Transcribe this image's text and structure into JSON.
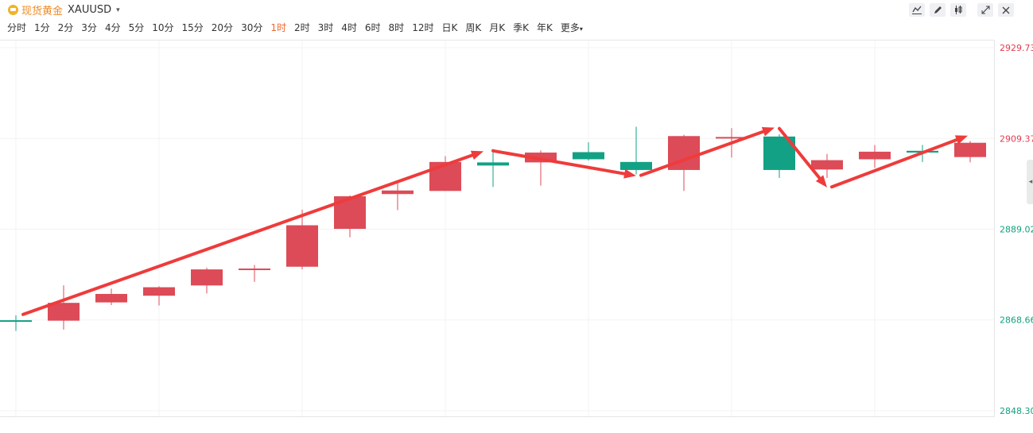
{
  "header": {
    "name": "现货黄金",
    "code": "XAUUSD",
    "caret": "▾"
  },
  "periods": [
    "分时",
    "1分",
    "2分",
    "3分",
    "4分",
    "5分",
    "10分",
    "15分",
    "20分",
    "30分",
    "1时",
    "2时",
    "3时",
    "4时",
    "6时",
    "8时",
    "12时",
    "日K",
    "周K",
    "月K",
    "季K",
    "年K",
    "更多"
  ],
  "active_period": "1时",
  "tools": [
    {
      "icon": "line-chart-icon"
    },
    {
      "icon": "pencil-icon"
    },
    {
      "icon": "candlestick-icon"
    },
    {
      "icon": "fullscreen-icon"
    },
    {
      "icon": "close-icon"
    }
  ],
  "colors": {
    "up": "#dc4b57",
    "down": "#12a184",
    "arrow": "#ef3b3b",
    "label_up": "#e23b4e",
    "label_down": "#13a07f"
  },
  "chart_data": {
    "type": "candlestick",
    "title": "",
    "ylim": [
      2848.3,
      2929.73
    ],
    "y_ticks": [
      {
        "value": 2929.73,
        "label": "2929.73"
      },
      {
        "value": 2909.37,
        "label": "2909.37"
      },
      {
        "value": 2889.02,
        "label": "2889.02"
      },
      {
        "value": 2868.66,
        "label": "2868.66"
      },
      {
        "value": 2848.3,
        "label": "2848.30"
      }
    ],
    "candles": [
      {
        "open": 2868.6,
        "close": 2868.3,
        "high": 2869.7,
        "low": 2866.2
      },
      {
        "open": 2868.5,
        "close": 2872.5,
        "high": 2876.4,
        "low": 2866.5
      },
      {
        "open": 2872.6,
        "close": 2874.5,
        "high": 2875.7,
        "low": 2872.0
      },
      {
        "open": 2874.1,
        "close": 2876.0,
        "high": 2876.2,
        "low": 2871.9
      },
      {
        "open": 2876.4,
        "close": 2880.0,
        "high": 2880.4,
        "low": 2874.6
      },
      {
        "open": 2880.2,
        "close": 2880.2,
        "high": 2881.0,
        "low": 2877.2
      },
      {
        "open": 2880.6,
        "close": 2889.9,
        "high": 2893.4,
        "low": 2880.0
      },
      {
        "open": 2889.1,
        "close": 2896.4,
        "high": 2896.6,
        "low": 2887.2
      },
      {
        "open": 2896.9,
        "close": 2897.7,
        "high": 2899.6,
        "low": 2893.3
      },
      {
        "open": 2897.6,
        "close": 2904.1,
        "high": 2905.4,
        "low": 2897.6
      },
      {
        "open": 2904.0,
        "close": 2903.3,
        "high": 2907.0,
        "low": 2898.5
      },
      {
        "open": 2904.0,
        "close": 2906.2,
        "high": 2906.7,
        "low": 2898.8
      },
      {
        "open": 2906.3,
        "close": 2904.7,
        "high": 2908.5,
        "low": 2904.4
      },
      {
        "open": 2904.1,
        "close": 2902.3,
        "high": 2912.0,
        "low": 2901.3
      },
      {
        "open": 2902.3,
        "close": 2909.9,
        "high": 2910.2,
        "low": 2897.6
      },
      {
        "open": 2909.4,
        "close": 2909.7,
        "high": 2911.7,
        "low": 2905.1
      },
      {
        "open": 2909.8,
        "close": 2902.3,
        "high": 2910.3,
        "low": 2900.5
      },
      {
        "open": 2902.4,
        "close": 2904.5,
        "high": 2905.9,
        "low": 2900.5
      },
      {
        "open": 2904.7,
        "close": 2906.4,
        "high": 2907.9,
        "low": 2902.8
      },
      {
        "open": 2906.6,
        "close": 2906.2,
        "high": 2907.9,
        "low": 2904.1
      },
      {
        "open": 2905.2,
        "close": 2908.4,
        "high": 2908.8,
        "low": 2904.0
      }
    ]
  }
}
